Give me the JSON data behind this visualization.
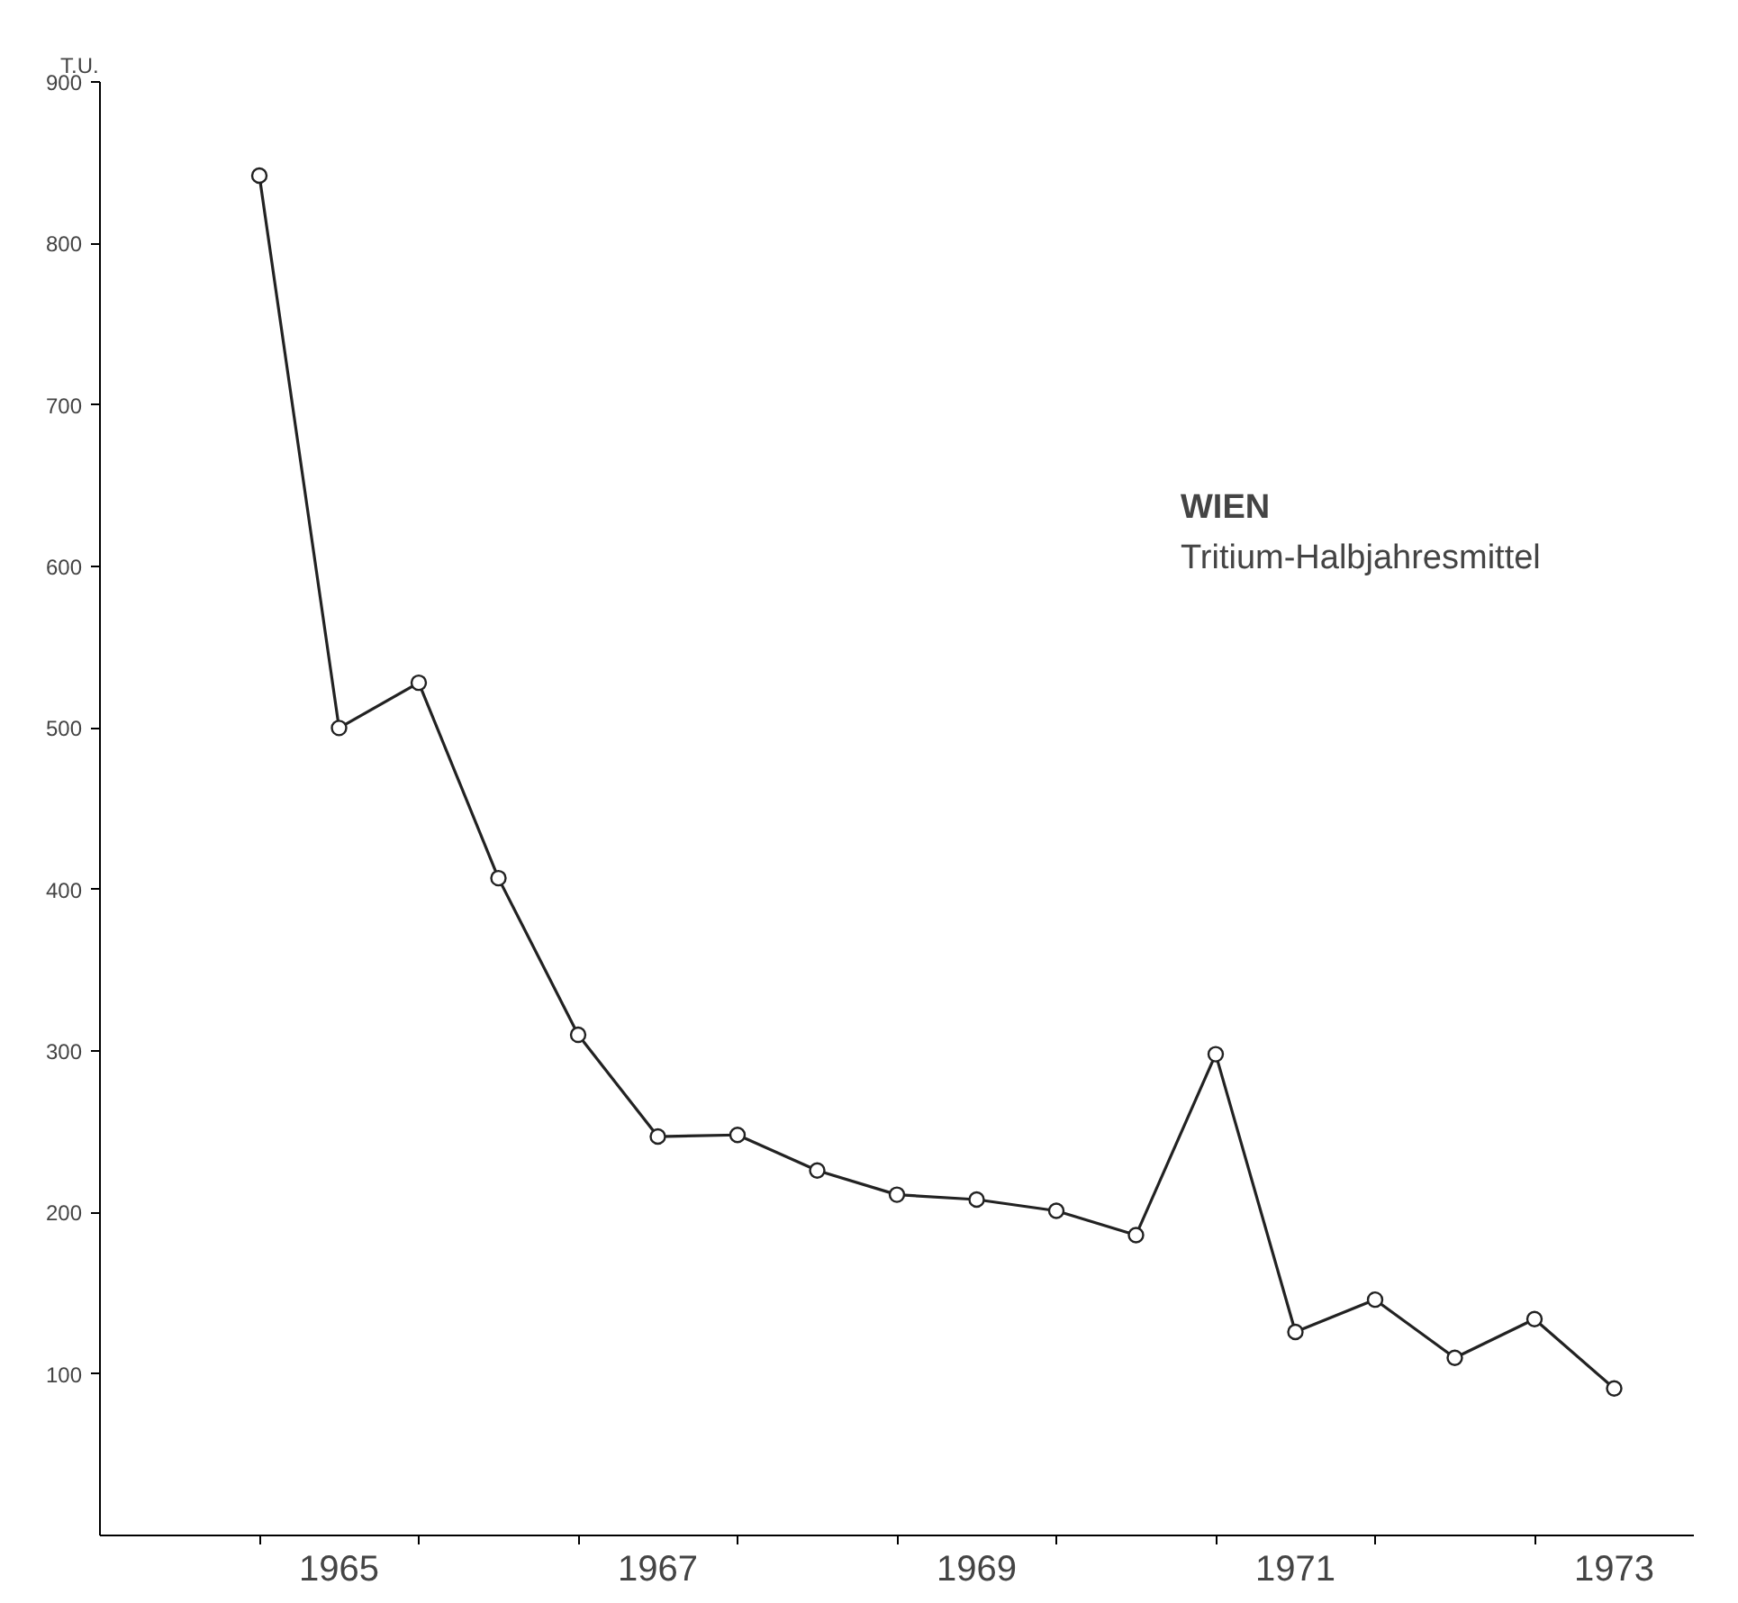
{
  "chart_data": {
    "type": "line",
    "title": "WIEN",
    "subtitle": "Tritium-Halbjahresmittel",
    "ylabel": "T.U.",
    "x": [
      1965.0,
      1965.5,
      1966.0,
      1966.5,
      1967.0,
      1967.5,
      1968.0,
      1968.5,
      1969.0,
      1969.5,
      1970.0,
      1970.5,
      1971.0,
      1971.5,
      1972.0,
      1972.5,
      1973.0,
      1973.5
    ],
    "series": [
      {
        "color": "#222222",
        "values": [
          842,
          500,
          528,
          407,
          310,
          247,
          248,
          226,
          211,
          208,
          201,
          186,
          298,
          126,
          146,
          110,
          134,
          91
        ]
      }
    ],
    "xlim": [
      1964,
      1974
    ],
    "xticks": [
      {
        "value": 1965,
        "label": null
      },
      {
        "value": 1966,
        "label": null
      },
      {
        "value": 1967,
        "label": null
      },
      {
        "value": 1968,
        "label": null
      },
      {
        "value": 1969,
        "label": null
      },
      {
        "value": 1970,
        "label": null
      },
      {
        "value": 1971,
        "label": null
      },
      {
        "value": 1972,
        "label": null
      },
      {
        "value": 1973,
        "label": null
      },
      {
        "value": 1965.5,
        "label": "1965"
      },
      {
        "value": 1967.5,
        "label": "1967"
      },
      {
        "value": 1969.5,
        "label": "1969"
      },
      {
        "value": 1971.5,
        "label": "1971"
      },
      {
        "value": 1973.5,
        "label": "1973"
      }
    ],
    "ylim": [
      0,
      900
    ],
    "yticks": [
      100,
      200,
      300,
      400,
      500,
      600,
      700,
      800,
      900
    ],
    "grid": false,
    "marker": "circle",
    "line_style": "solid"
  }
}
